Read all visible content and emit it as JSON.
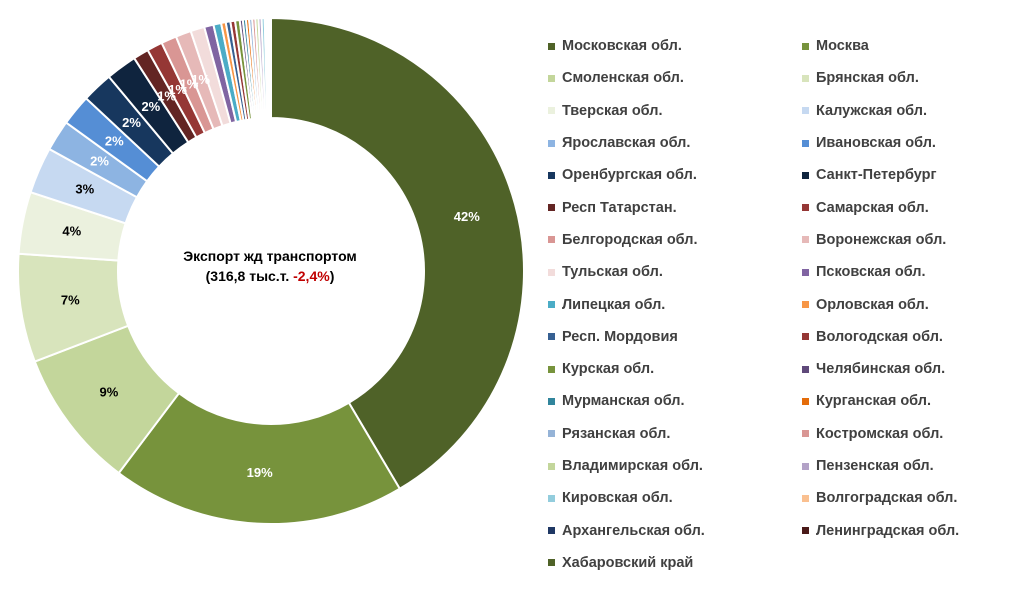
{
  "center": {
    "line1": "Экспорт жд транспортом",
    "line2_prefix": "(316,8 тыс.т. ",
    "line2_change": "-2,4%",
    "line2_suffix": ")"
  },
  "colors": {
    "text": "#404040",
    "negative": "#c00000"
  },
  "chart_data": {
    "type": "pie",
    "title": "Экспорт жд транспортом",
    "categories": [
      "Московская обл.",
      "Москва",
      "Смоленская обл.",
      "Брянская обл.",
      "Тверская обл.",
      "Калужская обл.",
      "Ярославская обл.",
      "Ивановская обл.",
      "Оренбургская обл.",
      "Санкт-Петербург",
      "Респ Татарстан.",
      "Самарская обл.",
      "Белгородская обл.",
      "Воронежская обл.",
      "Тульская обл.",
      "Псковская обл.",
      "Липецкая обл.",
      "Орловская обл.",
      "Респ. Мордовия",
      "Вологодская обл.",
      "Курская обл.",
      "Челябинская обл.",
      "Мурманская обл.",
      "Курганская обл.",
      "Рязанская обл.",
      "Костромская обл.",
      "Владимирская обл.",
      "Пензенская обл.",
      "Кировская обл.",
      "Волгоградская обл.",
      "Архангельская обл.",
      "Ленинградская обл.",
      "Хабаровский край"
    ],
    "values": [
      42,
      19,
      9,
      7,
      4,
      3,
      2,
      2,
      2,
      2,
      1,
      1,
      1,
      1,
      0.9,
      0.6,
      0.5,
      0.3,
      0.3,
      0.3,
      0.3,
      0.2,
      0.2,
      0.2,
      0.2,
      0.2,
      0.2,
      0.2,
      0.2,
      0.1,
      0.1,
      0.1,
      0.1
    ],
    "data_labels": [
      "42%",
      "19%",
      "9%",
      "7%",
      "4%",
      "3%",
      "2%",
      "2%",
      "2%",
      "2%",
      "1%",
      "1%",
      "1%",
      "1%",
      "",
      "",
      "",
      "",
      "",
      "",
      "",
      "",
      "",
      "",
      "",
      "",
      "",
      "",
      "",
      "",
      "",
      "",
      ""
    ],
    "label_colors": [
      "#ffffff",
      "#ffffff",
      "#000000",
      "#000000",
      "#000000",
      "#000000",
      "#ffffff",
      "#ffffff",
      "#ffffff",
      "#ffffff",
      "#ffffff",
      "#ffffff",
      "#ffffff",
      "#ffffff",
      "",
      "",
      "",
      "",
      "",
      "",
      "",
      "",
      "",
      "",
      "",
      "",
      "",
      "",
      "",
      "",
      "",
      "",
      ""
    ],
    "colors": [
      "#4f6228",
      "#77933c",
      "#c3d69b",
      "#d8e4bc",
      "#ebf1de",
      "#c6d9f1",
      "#8db4e2",
      "#558ed5",
      "#17375e",
      "#0f243e",
      "#632523",
      "#953735",
      "#d99694",
      "#e6b9b8",
      "#f2dcdb",
      "#8064a2",
      "#4bacc6",
      "#f79646",
      "#366092",
      "#953735",
      "#77933c",
      "#5f497a",
      "#31859c",
      "#e46c0a",
      "#95b3d7",
      "#d99694",
      "#c3d69b",
      "#b3a2c7",
      "#93cddd",
      "#fac090",
      "#1f3864",
      "#4a1a19",
      "#4f6228"
    ],
    "legend_placement": "right"
  }
}
